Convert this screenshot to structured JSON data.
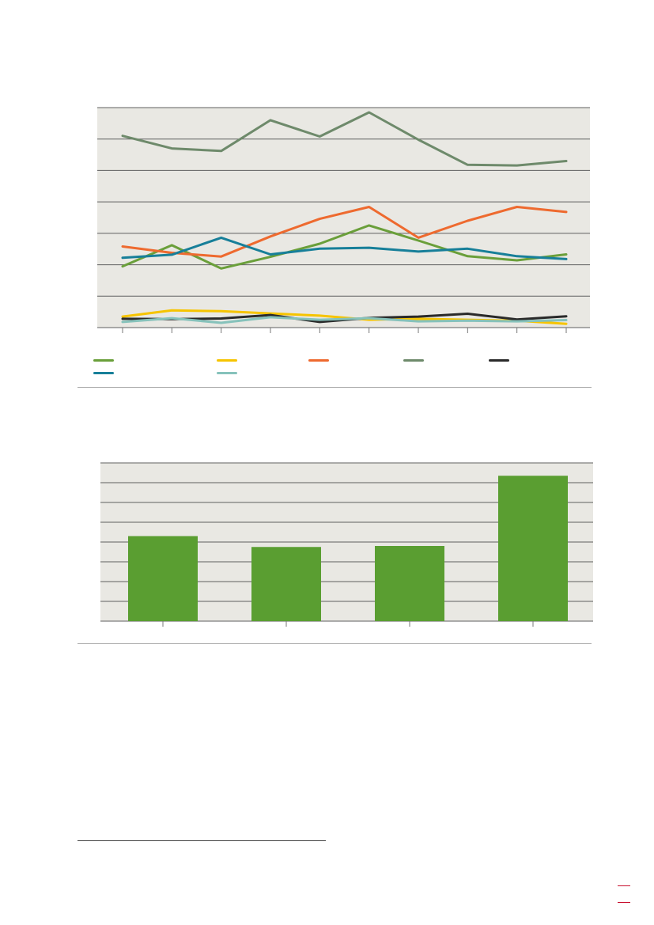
{
  "colors": {
    "panel_bg": "#e9e8e3",
    "grid": "#5f5f5f",
    "bar": "#5a9e31",
    "page_mark": "#c8102e"
  },
  "chart_data": [
    {
      "type": "line",
      "title": "",
      "xlabel": "",
      "ylabel": "",
      "x": [
        1,
        2,
        3,
        4,
        5,
        6,
        7,
        8,
        9,
        10
      ],
      "ylim": [
        0,
        7
      ],
      "grid": true,
      "legend_position": "bottom",
      "series": [
        {
          "color": "#6a9f3a",
          "values": [
            1.95,
            2.62,
            1.88,
            2.25,
            2.67,
            3.25,
            2.77,
            2.27,
            2.14,
            2.33
          ]
        },
        {
          "color": "#f6c400",
          "values": [
            0.35,
            0.55,
            0.52,
            0.45,
            0.38,
            0.25,
            0.28,
            0.25,
            0.22,
            0.12
          ]
        },
        {
          "color": "#ee6a2f",
          "values": [
            2.58,
            2.38,
            2.26,
            2.9,
            3.46,
            3.84,
            2.86,
            3.4,
            3.84,
            3.68
          ]
        },
        {
          "color": "#6e8a6b",
          "values": [
            6.1,
            5.7,
            5.62,
            6.6,
            6.08,
            6.85,
            5.98,
            5.18,
            5.16,
            5.3
          ]
        },
        {
          "color": "#2a2a2a",
          "values": [
            0.28,
            0.27,
            0.29,
            0.4,
            0.18,
            0.31,
            0.35,
            0.44,
            0.26,
            0.36
          ]
        },
        {
          "color": "#177f99",
          "values": [
            2.22,
            2.32,
            2.86,
            2.33,
            2.51,
            2.54,
            2.42,
            2.51,
            2.27,
            2.18
          ]
        },
        {
          "color": "#86c2bb",
          "values": [
            0.18,
            0.3,
            0.15,
            0.33,
            0.25,
            0.3,
            0.2,
            0.22,
            0.2,
            0.24
          ]
        }
      ]
    },
    {
      "type": "bar",
      "title": "",
      "xlabel": "",
      "ylabel": "",
      "categories": [
        "",
        "",
        "",
        ""
      ],
      "values": [
        4.3,
        3.75,
        3.8,
        7.35
      ],
      "ylim": [
        0,
        8
      ],
      "grid": true
    }
  ]
}
